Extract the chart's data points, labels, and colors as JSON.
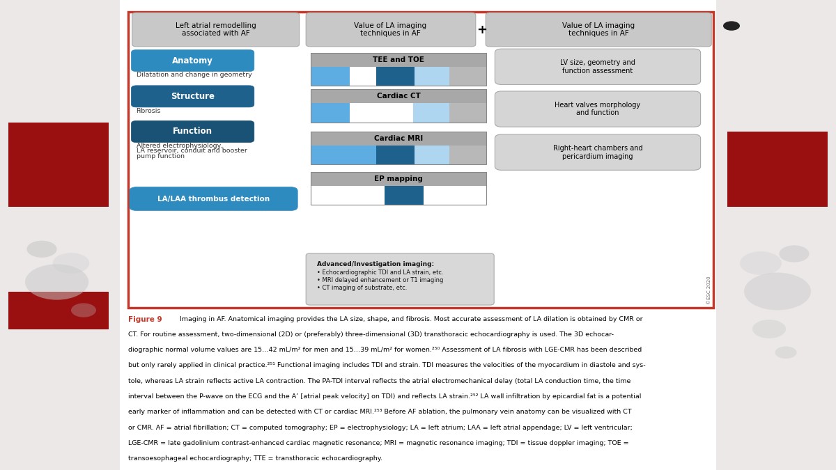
{
  "bg_outer": "#ece8e8",
  "bg_white": "#ffffff",
  "border_red": "#c0392b",
  "dark_red": "#8B1010",
  "header_gray": "#c0c0c0",
  "box_gray_light": "#d5d5d5",
  "adv_gray": "#d8d8d8",
  "blue_light": "#5dade2",
  "blue_dark": "#1f618d",
  "blue_pale": "#aed6f1",
  "gray_bar": "#a8a8a8",
  "gray_block": "#b8b8b8",
  "btn_anatomy": "#2e8bc0",
  "btn_structure": "#1f618d",
  "btn_function": "#1a5276",
  "btn_laa": "#2e8bc0",
  "header1": "Left atrial remodelling\nassociated with AF",
  "header2": "Value of LA imaging\ntechniques in AF",
  "header3": "Value of LA imaging\ntechniques in AF",
  "right_box1": "LV size, geometry and\nfunction assessment",
  "right_box2": "Heart valves morphology\nand function",
  "right_box3": "Right-heart chambers and\npericardium imaging",
  "adv_title": "Advanced/Investigation imaging:",
  "adv_line1": "• Echocardiographic TDI and LA strain, etc.",
  "adv_line2": "• MRI delayed enhancement or T1 imaging",
  "adv_line3": "• CT imaging of substrate, etc.",
  "esc": "©ESC 2020",
  "fig_label": "Figure 9",
  "fig_caption": " Imaging in AF. Anatomical imaging provides the LA size, shape, and fibrosis. Most accurate assessment of LA dilation is obtained by CMR or CT. For routine assessment, two-dimensional (2D) or (preferably) three-dimensional (3D) transthoracic echocardiography is used. The 3D echocardiographic normal volume values are 15…42 mL/m² for men and 15…39 mL/m² for women.²⁵⁰ Assessment of LA fibrosis with LGE-CMR has been described but only rarely applied in clinical practice.²⁵¹ Functional imaging includes TDI and strain. TDI measures the velocities of the myocardium in diastole and systole, whereas LA strain reflects active LA contraction. The PA-TDI interval reflects the atrial electromechanical delay (total LA conduction time, the time interval between the P-wave on the ECG and the A’ [atrial peak velocity] on TDI) and reflects LA strain.²⁵² LA wall infiltration by epicardial fat is a potential early marker of inflammation and can be detected with CT or cardiac MRI.²⁵³ Before AF ablation, the pulmonary vein anatomy can be visualized with CT or CMR. AF = atrial fibrillation; CT = computed tomography; EP = electrophysiology; LA = left atrium; LAA = left atrial appendage; LV = left ventricular; LGE-CMR = late gadolinium contrast-enhanced cardiac magnetic resonance; MRI = magnetic resonance imaging; TDI = tissue doppler imaging; TOE = transoesophageal echocardiography; TTE = transthoracic echocardiography."
}
